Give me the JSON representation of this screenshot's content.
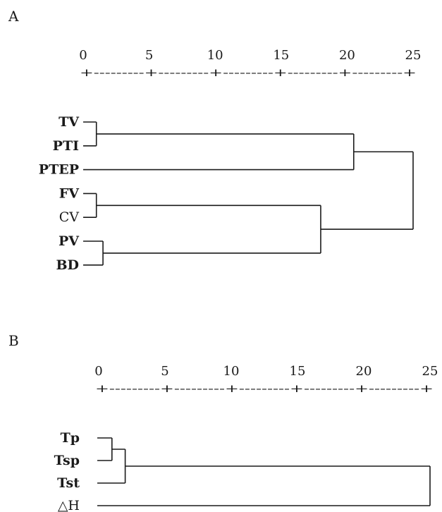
{
  "chart_data": [
    {
      "type": "dendrogram",
      "panel_label": "A",
      "scale_ticks": [
        "0",
        "5",
        "10",
        "15",
        "20",
        "25"
      ],
      "scale_rule": "+---------+---------+---------+---------+---------+",
      "leaves": [
        {
          "label": "TV",
          "bold": true
        },
        {
          "label": "PTI",
          "bold": true
        },
        {
          "label": "PTEP",
          "bold": true
        },
        {
          "label": "FV",
          "bold": true
        },
        {
          "label": "CV",
          "bold": false
        },
        {
          "label": "PV",
          "bold": true
        },
        {
          "label": "BD",
          "bold": true
        }
      ],
      "merges": [
        {
          "children": [
            "TV",
            "PTI"
          ],
          "distance": 1
        },
        {
          "children": [
            "PV",
            "BD"
          ],
          "distance": 1.5
        },
        {
          "children": [
            "FV",
            "CV"
          ],
          "distance": 1
        },
        {
          "children": [
            [
              "FV",
              "CV"
            ],
            [
              "PV",
              "BD"
            ]
          ],
          "distance": 18
        },
        {
          "children": [
            [
              "TV",
              "PTI"
            ],
            "PTEP"
          ],
          "distance": 20.5
        },
        {
          "children": [
            [
              [
                "TV",
                "PTI"
              ],
              "PTEP"
            ],
            [
              [
                "FV",
                "CV"
              ],
              [
                "PV",
                "BD"
              ]
            ]
          ],
          "distance": 25
        }
      ],
      "xlim": [
        0,
        25
      ]
    },
    {
      "type": "dendrogram",
      "panel_label": "B",
      "scale_ticks": [
        "0",
        "5",
        "10",
        "15",
        "20",
        "25"
      ],
      "scale_rule": "+---------+---------+---------+---------+---------+",
      "leaves": [
        {
          "label": "Tp",
          "bold": true
        },
        {
          "label": "Tsp",
          "bold": true
        },
        {
          "label": "Tst",
          "bold": true
        },
        {
          "label": "△H",
          "bold": false
        }
      ],
      "merges": [
        {
          "children": [
            "Tp",
            "Tsp"
          ],
          "distance": 1
        },
        {
          "children": [
            [
              "Tp",
              "Tsp"
            ],
            "Tst"
          ],
          "distance": 2
        },
        {
          "children": [
            [
              [
                "Tp",
                "Tsp"
              ],
              "Tst"
            ],
            "△H"
          ],
          "distance": 25
        }
      ],
      "xlim": [
        0,
        25
      ]
    }
  ],
  "colors": {
    "ink": "#1a1a1a",
    "background": "#ffffff"
  }
}
